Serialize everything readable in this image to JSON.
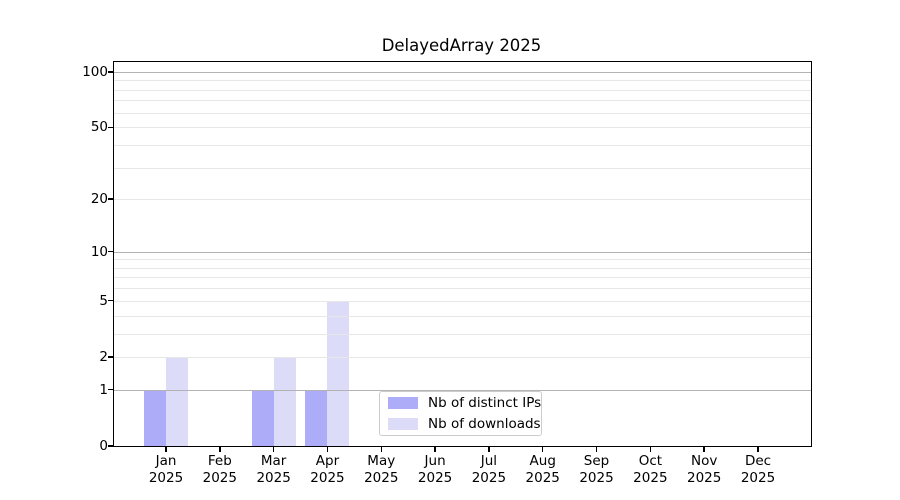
{
  "title": "DelayedArray 2025",
  "chart_data": {
    "type": "bar",
    "title": "DelayedArray 2025",
    "categories": [
      "Jan",
      "Feb",
      "Mar",
      "Apr",
      "May",
      "Jun",
      "Jul",
      "Aug",
      "Sep",
      "Oct",
      "Nov",
      "Dec"
    ],
    "category_year": "2025",
    "series": [
      {
        "name": "Nb of distinct IPs",
        "color": "#acacf8",
        "values": [
          1,
          0,
          1,
          1,
          0,
          0,
          0,
          0,
          0,
          0,
          0,
          0
        ]
      },
      {
        "name": "Nb of downloads",
        "color": "#dcdcf8",
        "values": [
          2,
          0,
          2,
          5,
          0,
          0,
          0,
          0,
          0,
          0,
          0,
          0
        ]
      }
    ],
    "xlabel": "",
    "ylabel": "",
    "y_axis": {
      "scale": "log10(1+v)",
      "tick_values": [
        0,
        1,
        2,
        5,
        10,
        20,
        50,
        100
      ],
      "tick_labels": [
        "0",
        "1",
        "2",
        "5",
        "10",
        "20",
        "50",
        "100"
      ],
      "major_gridline_values": [
        1,
        10,
        100
      ],
      "minor_gridline_values": [
        2,
        3,
        4,
        5,
        6,
        7,
        8,
        9,
        20,
        30,
        40,
        50,
        60,
        70,
        80,
        90
      ],
      "top_value": 113,
      "ylim": [
        0,
        113
      ]
    },
    "legend": {
      "position": "inside-bottom-center",
      "entries": [
        "Nb of distinct IPs",
        "Nb of downloads"
      ]
    },
    "grid": "on",
    "colors": {
      "minor_grid": "#e7e7e7",
      "major_grid": "#b3b3b3",
      "spine": "#000000",
      "legend_border": "#cccccc",
      "background": "#ffffff"
    }
  }
}
